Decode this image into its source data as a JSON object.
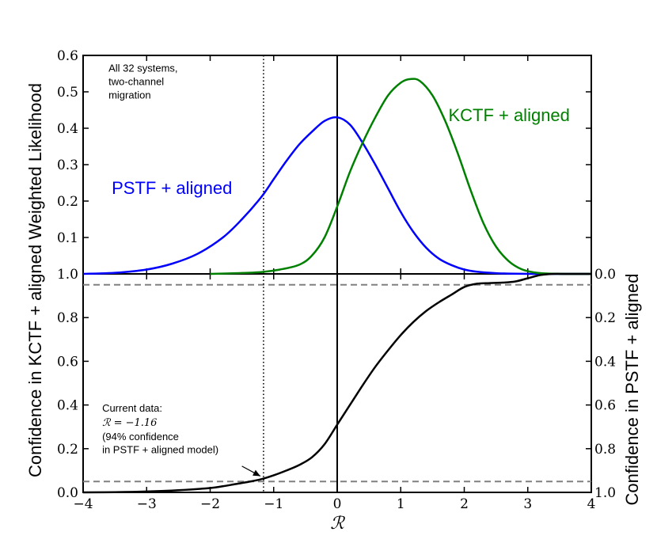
{
  "chart_data": [
    {
      "type": "line",
      "panel": "top",
      "ylabel": "Weighted Likelihood",
      "xlim": [
        -4,
        4
      ],
      "ylim": [
        0,
        0.6
      ],
      "xticks": [
        -4,
        -3,
        -2,
        -1,
        0,
        1,
        2,
        3,
        4
      ],
      "yticks": [
        {
          "value": 0.1,
          "label": "0.1"
        },
        {
          "value": 0.2,
          "label": "0.2"
        },
        {
          "value": 0.3,
          "label": "0.3"
        },
        {
          "value": 0.4,
          "label": "0.4"
        },
        {
          "value": 0.5,
          "label": "0.5"
        },
        {
          "value": 0.6,
          "label": "0.6"
        }
      ],
      "series": [
        {
          "name": "PSTF + aligned",
          "color": "#0000ff",
          "x": [
            -4.0,
            -3.5,
            -3.0,
            -2.6,
            -2.2,
            -1.8,
            -1.5,
            -1.2,
            -1.0,
            -0.8,
            -0.6,
            -0.4,
            -0.2,
            0.0,
            0.2,
            0.4,
            0.6,
            0.8,
            1.0,
            1.2,
            1.4,
            1.6,
            1.8,
            2.0,
            2.2,
            2.5,
            2.8,
            3.2,
            3.6,
            4.0
          ],
          "y": [
            0.0,
            0.003,
            0.012,
            0.028,
            0.055,
            0.1,
            0.15,
            0.21,
            0.26,
            0.31,
            0.355,
            0.39,
            0.42,
            0.43,
            0.41,
            0.36,
            0.3,
            0.235,
            0.17,
            0.115,
            0.072,
            0.042,
            0.024,
            0.012,
            0.006,
            0.002,
            0.0005,
            0.0,
            0.0,
            0.0
          ]
        },
        {
          "name": "KCTF + aligned",
          "color": "#008000",
          "x": [
            -2.0,
            -1.6,
            -1.2,
            -0.9,
            -0.6,
            -0.4,
            -0.2,
            0.0,
            0.2,
            0.4,
            0.6,
            0.8,
            1.0,
            1.15,
            1.3,
            1.5,
            1.7,
            1.9,
            2.1,
            2.3,
            2.5,
            2.7,
            2.9,
            3.1,
            3.3,
            3.6,
            4.0
          ],
          "y": [
            0.0,
            0.002,
            0.005,
            0.012,
            0.025,
            0.05,
            0.1,
            0.185,
            0.28,
            0.36,
            0.43,
            0.49,
            0.525,
            0.535,
            0.53,
            0.49,
            0.42,
            0.33,
            0.23,
            0.14,
            0.075,
            0.035,
            0.013,
            0.004,
            0.001,
            0.0,
            0.0
          ]
        }
      ],
      "annotations": [
        {
          "id": "pstf",
          "text": "PSTF + aligned",
          "color": "#0000ff",
          "role": "series-label"
        },
        {
          "id": "kctf",
          "text": "KCTF + aligned",
          "color": "#008000",
          "role": "series-label"
        },
        {
          "id": "systems",
          "lines": [
            "All 32 systems,",
            "two-channel",
            "migration"
          ],
          "color": "#000000",
          "role": "note"
        }
      ]
    },
    {
      "type": "line",
      "panel": "bottom",
      "xlabel": "ℛ",
      "ylabel": "Confidence in KCTF + aligned",
      "y2label": "Confidence in PSTF + aligned",
      "xlim": [
        -4,
        4
      ],
      "ylim": [
        0,
        1
      ],
      "xticks": [
        {
          "value": -4,
          "label": "−4"
        },
        {
          "value": -3,
          "label": "−3"
        },
        {
          "value": -2,
          "label": "−2"
        },
        {
          "value": -1,
          "label": "−1"
        },
        {
          "value": 0,
          "label": "0"
        },
        {
          "value": 1,
          "label": "1"
        },
        {
          "value": 2,
          "label": "2"
        },
        {
          "value": 3,
          "label": "3"
        },
        {
          "value": 4,
          "label": "4"
        }
      ],
      "yticks": [
        {
          "value": 0.0,
          "label": "0.0"
        },
        {
          "value": 0.2,
          "label": "0.2"
        },
        {
          "value": 0.4,
          "label": "0.4"
        },
        {
          "value": 0.6,
          "label": "0.6"
        },
        {
          "value": 0.8,
          "label": "0.8"
        },
        {
          "value": 1.0,
          "label": "1.0"
        }
      ],
      "y2ticks": [
        {
          "value": 1.0,
          "label": "0.0"
        },
        {
          "value": 0.8,
          "label": "0.2"
        },
        {
          "value": 0.6,
          "label": "0.4"
        },
        {
          "value": 0.4,
          "label": "0.6"
        },
        {
          "value": 0.2,
          "label": "0.8"
        },
        {
          "value": 0.0,
          "label": "1.0"
        }
      ],
      "series": [
        {
          "name": "Confidence",
          "color": "#000000",
          "x": [
            -4.0,
            -3.5,
            -3.0,
            -2.5,
            -2.0,
            -1.8,
            -1.6,
            -1.4,
            -1.2,
            -1.0,
            -0.8,
            -0.6,
            -0.4,
            -0.2,
            0.0,
            0.2,
            0.4,
            0.6,
            0.8,
            1.0,
            1.2,
            1.4,
            1.6,
            1.8,
            2.0,
            2.2,
            2.4,
            2.6,
            2.8,
            3.0,
            3.2,
            3.4,
            3.6,
            4.0
          ],
          "y": [
            0.0,
            0.001,
            0.004,
            0.01,
            0.02,
            0.028,
            0.038,
            0.048,
            0.06,
            0.078,
            0.1,
            0.125,
            0.16,
            0.22,
            0.31,
            0.4,
            0.49,
            0.575,
            0.65,
            0.72,
            0.78,
            0.83,
            0.87,
            0.905,
            0.94,
            0.955,
            0.958,
            0.96,
            0.965,
            0.98,
            0.995,
            1.0,
            1.0,
            1.0
          ]
        }
      ],
      "reference_lines": [
        {
          "orientation": "horizontal",
          "value": 0.05,
          "style": "dashed",
          "color": "#808080"
        },
        {
          "orientation": "horizontal",
          "value": 0.95,
          "style": "dashed",
          "color": "#808080"
        }
      ],
      "annotations": [
        {
          "id": "current",
          "lines": [
            "Current data:",
            "ℛ = −1.16",
            "(94% confidence",
            "in PSTF + aligned model)"
          ],
          "color": "#000000",
          "arrow_to": {
            "x": -1.16,
            "y": 0.06
          }
        }
      ]
    }
  ],
  "shared": {
    "vertical_lines": [
      {
        "value": 0,
        "style": "solid",
        "color": "#000000"
      },
      {
        "value": -1.16,
        "style": "dotted",
        "color": "#000000"
      }
    ],
    "left_ylabel": "Confidence in KCTF + aligned Weighted Likelihood"
  }
}
